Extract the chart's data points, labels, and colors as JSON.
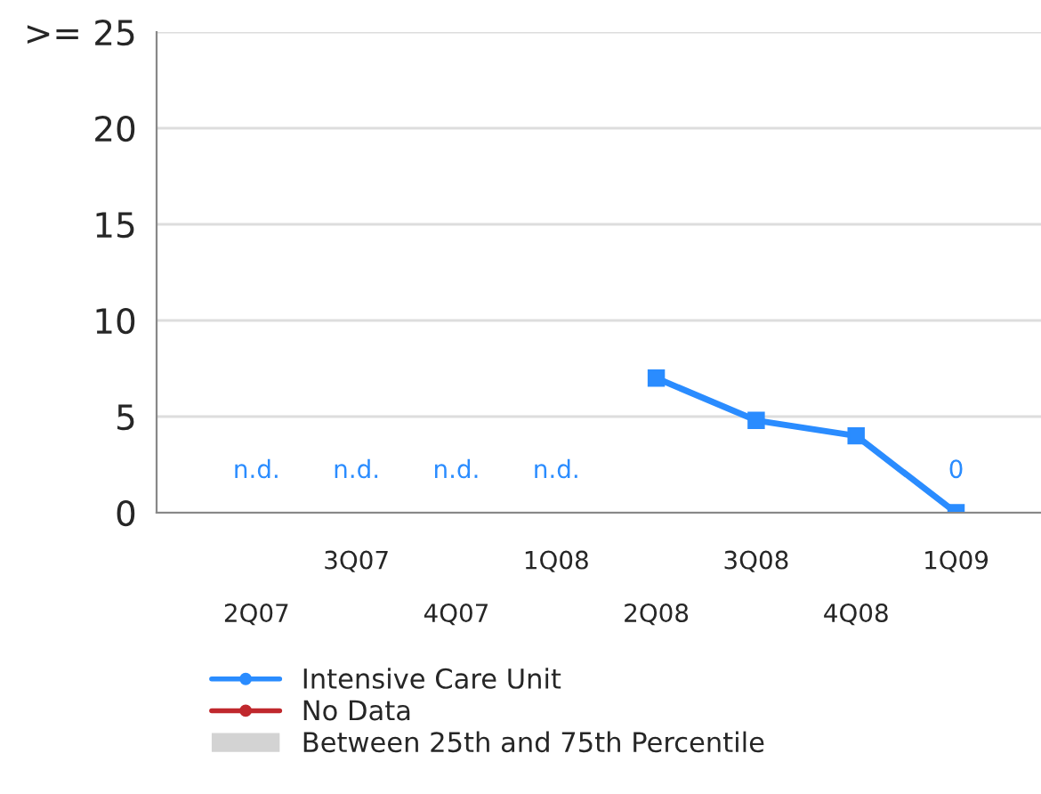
{
  "chart_data": {
    "type": "line",
    "categories": [
      "2Q07",
      "3Q07",
      "4Q07",
      "1Q08",
      "2Q08",
      "3Q08",
      "4Q08",
      "1Q09"
    ],
    "series": [
      {
        "name": "Intensive Care Unit",
        "color": "#2a8cff",
        "values": [
          null,
          null,
          null,
          null,
          7,
          4.8,
          4,
          0
        ],
        "value_labels": [
          "n.d.",
          "n.d.",
          "n.d.",
          "n.d.",
          null,
          null,
          null,
          "0"
        ],
        "marker": "square"
      },
      {
        "name": "No Data",
        "color": "#c0282d",
        "values": [
          null,
          null,
          null,
          null,
          null,
          null,
          null,
          null
        ],
        "marker": "square"
      },
      {
        "name": "Between 25th and 75th Percentile",
        "type": "area",
        "color": "#d3d3d3",
        "values": [
          null,
          null,
          null,
          null,
          null,
          null,
          null,
          null
        ]
      }
    ],
    "ylim": [
      0,
      25
    ],
    "yticks": [
      0,
      5,
      10,
      15,
      20,
      {
        "value": 25,
        "label": ">= 25"
      }
    ],
    "grid": "y",
    "legend": "bottom"
  }
}
